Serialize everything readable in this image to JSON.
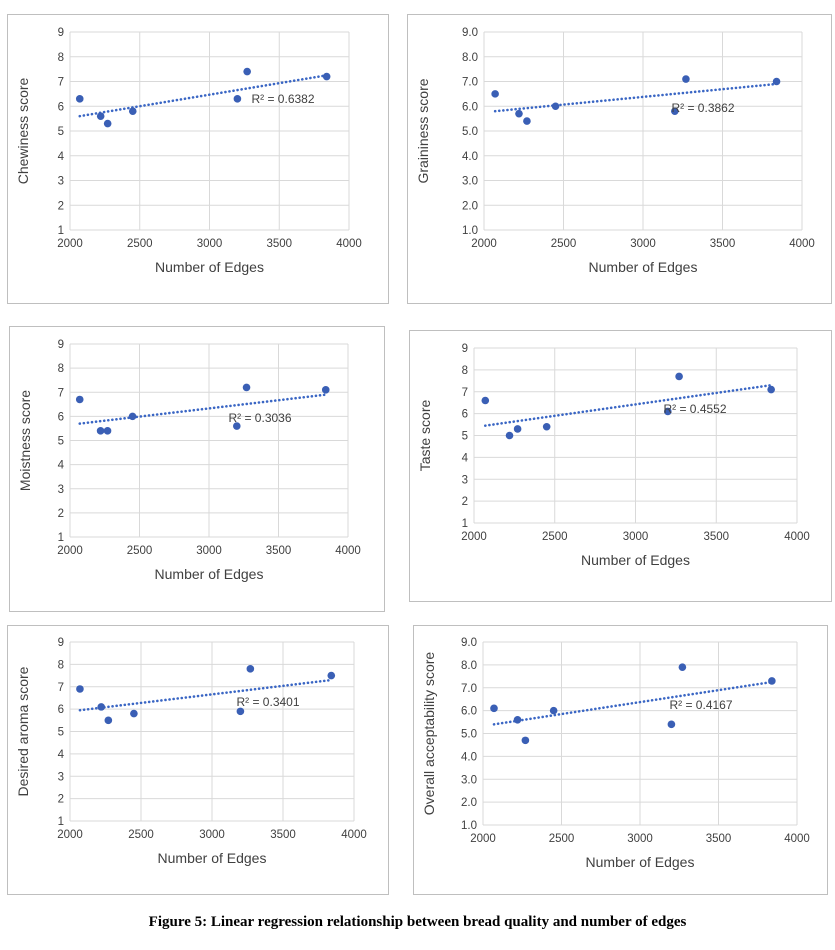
{
  "figure": {
    "caption": "Figure 5: Linear regression relationship between bread quality and number of edges"
  },
  "colors": {
    "point": "#3a5fb5",
    "trend": "#3a66c4",
    "grid": "#d9d9d9",
    "axis_text": "#404040"
  },
  "chart_data": [
    {
      "type": "scatter",
      "xlabel": "Number of Edges",
      "ylabel": "Chewiness score",
      "xlim": [
        2000,
        4000
      ],
      "ylim": [
        1,
        9
      ],
      "xticks": [
        "2000",
        "2500",
        "3000",
        "3500",
        "4000"
      ],
      "yticks": [
        "1",
        "2",
        "3",
        "4",
        "5",
        "6",
        "7",
        "8",
        "9"
      ],
      "x": [
        2070,
        2220,
        2270,
        2450,
        3200,
        3270,
        3840
      ],
      "y": [
        6.3,
        5.6,
        5.3,
        5.8,
        6.3,
        7.4,
        7.2
      ],
      "trendline": {
        "style": "dotted linear",
        "x": [
          2070,
          3840
        ],
        "y": [
          5.6,
          7.25
        ]
      },
      "annotation": "R² = 0.6382",
      "grid": true
    },
    {
      "type": "scatter",
      "xlabel": "Number of Edges",
      "ylabel": "Graininess score",
      "xlim": [
        2000,
        4000
      ],
      "ylim": [
        1,
        9
      ],
      "xticks": [
        "2000",
        "2500",
        "3000",
        "3500",
        "4000"
      ],
      "yticks": [
        "1.0",
        "2.0",
        "3.0",
        "4.0",
        "5.0",
        "6.0",
        "7.0",
        "8.0",
        "9.0"
      ],
      "x": [
        2070,
        2220,
        2270,
        2450,
        3200,
        3270,
        3840
      ],
      "y": [
        6.5,
        5.7,
        5.4,
        6.0,
        5.8,
        7.1,
        7.0
      ],
      "trendline": {
        "style": "dotted linear",
        "x": [
          2070,
          3840
        ],
        "y": [
          5.8,
          6.9
        ]
      },
      "annotation": "R² = 0.3862",
      "grid": true
    },
    {
      "type": "scatter",
      "xlabel": "Number of Edges",
      "ylabel": "Moistness score",
      "xlim": [
        2000,
        4000
      ],
      "ylim": [
        1,
        9
      ],
      "xticks": [
        "2000",
        "2500",
        "3000",
        "3500",
        "4000"
      ],
      "yticks": [
        "1",
        "2",
        "3",
        "4",
        "5",
        "6",
        "7",
        "8",
        "9"
      ],
      "x": [
        2070,
        2220,
        2270,
        2450,
        3200,
        3270,
        3840
      ],
      "y": [
        6.7,
        5.4,
        5.4,
        6.0,
        5.6,
        7.2,
        7.1
      ],
      "trendline": {
        "style": "dotted linear",
        "x": [
          2070,
          3840
        ],
        "y": [
          5.7,
          6.9
        ]
      },
      "annotation": "R² = 0.3036",
      "grid": true
    },
    {
      "type": "scatter",
      "xlabel": "Number of Edges",
      "ylabel": "Taste score",
      "xlim": [
        2000,
        4000
      ],
      "ylim": [
        1,
        9
      ],
      "xticks": [
        "2000",
        "2500",
        "3000",
        "3500",
        "4000"
      ],
      "yticks": [
        "1",
        "2",
        "3",
        "4",
        "5",
        "6",
        "7",
        "8",
        "9"
      ],
      "x": [
        2070,
        2220,
        2270,
        2450,
        3200,
        3270,
        3840
      ],
      "y": [
        6.6,
        5.0,
        5.3,
        5.4,
        6.1,
        7.7,
        7.1
      ],
      "trendline": {
        "style": "dotted linear",
        "x": [
          2070,
          3840
        ],
        "y": [
          5.45,
          7.3
        ]
      },
      "annotation": "R² = 0.4552",
      "grid": true
    },
    {
      "type": "scatter",
      "xlabel": "Number of Edges",
      "ylabel": "Desired aroma score",
      "xlim": [
        2000,
        4000
      ],
      "ylim": [
        1,
        9
      ],
      "xticks": [
        "2000",
        "2500",
        "3000",
        "3500",
        "4000"
      ],
      "yticks": [
        "1",
        "2",
        "3",
        "4",
        "5",
        "6",
        "7",
        "8",
        "9"
      ],
      "x": [
        2070,
        2220,
        2270,
        2450,
        3200,
        3270,
        3840
      ],
      "y": [
        6.9,
        6.1,
        5.5,
        5.8,
        5.9,
        7.8,
        7.5
      ],
      "trendline": {
        "style": "dotted linear",
        "x": [
          2070,
          3840
        ],
        "y": [
          5.95,
          7.3
        ]
      },
      "annotation": "R² = 0.3401",
      "grid": true
    },
    {
      "type": "scatter",
      "xlabel": "Number of Edges",
      "ylabel": "Overall acceptability score",
      "xlim": [
        2000,
        4000
      ],
      "ylim": [
        1,
        9
      ],
      "xticks": [
        "2000",
        "2500",
        "3000",
        "3500",
        "4000"
      ],
      "yticks": [
        "1.0",
        "2.0",
        "3.0",
        "4.0",
        "5.0",
        "6.0",
        "7.0",
        "8.0",
        "9.0"
      ],
      "x": [
        2070,
        2220,
        2270,
        2450,
        3200,
        3270,
        3840
      ],
      "y": [
        6.1,
        5.6,
        4.7,
        6.0,
        5.4,
        7.9,
        7.3
      ],
      "trendline": {
        "style": "dotted linear",
        "x": [
          2070,
          3840
        ],
        "y": [
          5.4,
          7.25
        ]
      },
      "annotation": "R² = 0.4167",
      "grid": true
    }
  ]
}
